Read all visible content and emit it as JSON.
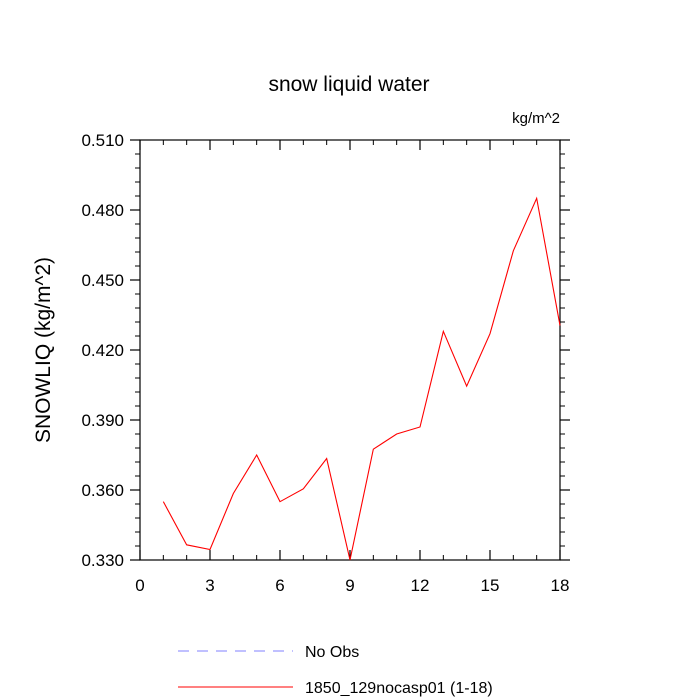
{
  "chart_data": {
    "type": "line",
    "title": "snow liquid water",
    "units_label": "kg/m^2",
    "ylabel": "SNOWLIQ  (kg/m^2)",
    "xlabel": "",
    "xlim": [
      0,
      18
    ],
    "ylim": [
      0.33,
      0.51
    ],
    "x_ticks": [
      0,
      3,
      6,
      9,
      12,
      15,
      18
    ],
    "y_ticks": [
      0.33,
      0.36,
      0.39,
      0.42,
      0.45,
      0.48,
      0.51
    ],
    "y_tick_labels": [
      "0.330",
      "0.360",
      "0.390",
      "0.420",
      "0.450",
      "0.480",
      "0.510"
    ],
    "grid": false,
    "legend_position": "bottom",
    "series": [
      {
        "name": "1850_129nocasp01 (1-18)",
        "color": "#ff0000",
        "dash": "solid",
        "x": [
          1,
          2,
          3,
          4,
          5,
          6,
          7,
          8,
          9,
          10,
          11,
          12,
          13,
          14,
          15,
          16,
          17,
          18
        ],
        "values": [
          0.355,
          0.3365,
          0.3345,
          0.3585,
          0.375,
          0.355,
          0.3605,
          0.3735,
          0.33,
          0.3775,
          0.384,
          0.387,
          0.428,
          0.4045,
          0.427,
          0.4625,
          0.485,
          0.4305
        ]
      }
    ],
    "legend": [
      {
        "label": "No Obs",
        "color": "#8080ff",
        "dash": "dashed"
      },
      {
        "label": "1850_129nocasp01 (1-18)",
        "color": "#ff0000",
        "dash": "solid"
      }
    ]
  }
}
